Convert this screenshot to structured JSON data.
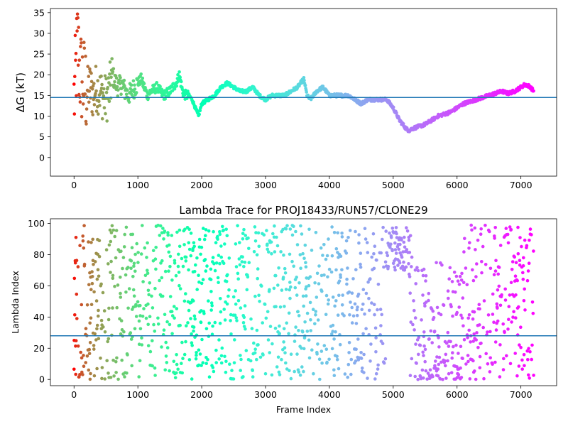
{
  "chart_data": [
    {
      "type": "scatter",
      "title": "",
      "xlabel": "",
      "ylabel": "ΔG (kT)",
      "xlim": [
        -370,
        7560
      ],
      "ylim": [
        -4.5,
        36.0
      ],
      "xticks": [
        0,
        1000,
        2000,
        3000,
        4000,
        5000,
        6000,
        7000
      ],
      "yticks": [
        0,
        5,
        10,
        15,
        20,
        25,
        30,
        35
      ],
      "hline": 14.5,
      "grid": false,
      "colormap": "rainbow (red at frame 0 → purple at final frame)",
      "series": [
        {
          "x": [
            0,
            20,
            40,
            60,
            80,
            100,
            150,
            200,
            250,
            300,
            350,
            400,
            450,
            500,
            550,
            600,
            650,
            700,
            750,
            800,
            850,
            900,
            950,
            1000,
            1050,
            1100,
            1150,
            1200,
            1300,
            1400,
            1500,
            1600,
            1650,
            1700,
            1750,
            1800,
            1850,
            1900,
            1950,
            2000,
            2100,
            2200,
            2300,
            2400,
            2500,
            2600,
            2700,
            2800,
            2900,
            3000,
            3100,
            3200,
            3300,
            3400,
            3500,
            3600,
            3650,
            3700,
            3800,
            3900,
            4000,
            4100,
            4200,
            4300,
            4400,
            4500,
            4600,
            4700,
            4800,
            4900,
            5000,
            5100,
            5200,
            5250,
            5300,
            5400,
            5500,
            5600,
            5700,
            5800,
            5900,
            6000,
            6100,
            6200,
            6300,
            6400,
            6500,
            6600,
            6700,
            6800,
            6900,
            7000,
            7050,
            7100,
            7150,
            7200
          ],
          "y": [
            14,
            18,
            24,
            28,
            22,
            20,
            18,
            16,
            17,
            15,
            17,
            16,
            15,
            14,
            16,
            20,
            18,
            17,
            18,
            16,
            15,
            16,
            17,
            18,
            19,
            17,
            15,
            16,
            17,
            15,
            16,
            18,
            20,
            16,
            15,
            15,
            14,
            12,
            10,
            13,
            14,
            15,
            17,
            18,
            17,
            16,
            16,
            17,
            15,
            14,
            15,
            15,
            15,
            16,
            17,
            19,
            15,
            14,
            16,
            17,
            15,
            15,
            15,
            15,
            14,
            13,
            14,
            14,
            14,
            14,
            12,
            9,
            7,
            6.5,
            7,
            7.5,
            8,
            9,
            10,
            10.5,
            11,
            12,
            13,
            13.5,
            14,
            14.5,
            15,
            15.5,
            16,
            15.5,
            16,
            17,
            17.5,
            17.5,
            17,
            16
          ]
        }
      ]
    },
    {
      "type": "scatter",
      "title": "Lambda Trace for PROJ18433/RUN57/CLONE29",
      "xlabel": "Frame Index",
      "ylabel": "Lambda Index",
      "xlim": [
        -370,
        7560
      ],
      "ylim": [
        -4,
        103
      ],
      "xticks": [
        0,
        1000,
        2000,
        3000,
        4000,
        5000,
        6000,
        7000
      ],
      "yticks": [
        0,
        20,
        40,
        60,
        80,
        100
      ],
      "hline": 28,
      "grid": false,
      "colormap": "rainbow (red at frame 0 → purple at final frame)",
      "frames": [
        0,
        7200
      ],
      "lambda_range": [
        0,
        99
      ]
    }
  ]
}
